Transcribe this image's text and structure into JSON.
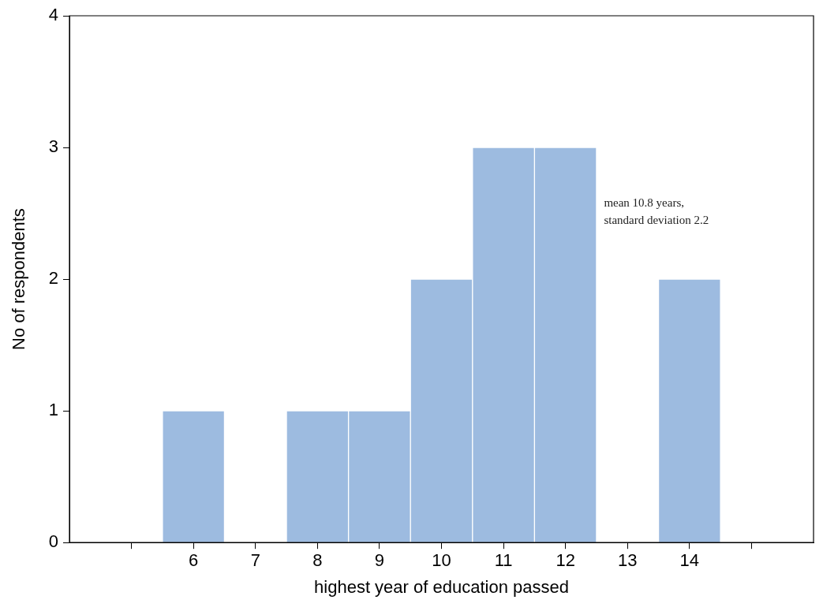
{
  "chart_data": {
    "type": "histogram",
    "xlabel": "highest year of education passed",
    "ylabel": "No of respondents",
    "bins": [
      5.5,
      6.5,
      7.5,
      8.5,
      9.5,
      10.5,
      11.5,
      12.5,
      13.5,
      14.5
    ],
    "values": [
      1,
      0,
      1,
      1,
      2,
      3,
      3,
      0,
      2
    ],
    "color": "#9dbbe0",
    "xlim": [
      4,
      16
    ],
    "xticks": [
      {
        "value": 5,
        "label": null
      },
      6,
      7,
      8,
      9,
      10,
      11,
      12,
      13,
      14,
      {
        "value": 15,
        "label": null
      }
    ],
    "ylim": [
      0,
      4
    ],
    "yticks": [
      0,
      1,
      2,
      3,
      4
    ],
    "grid": false,
    "legend": false,
    "annotations": [
      "mean 10.8 years,",
      "standard deviation 2.2"
    ]
  }
}
